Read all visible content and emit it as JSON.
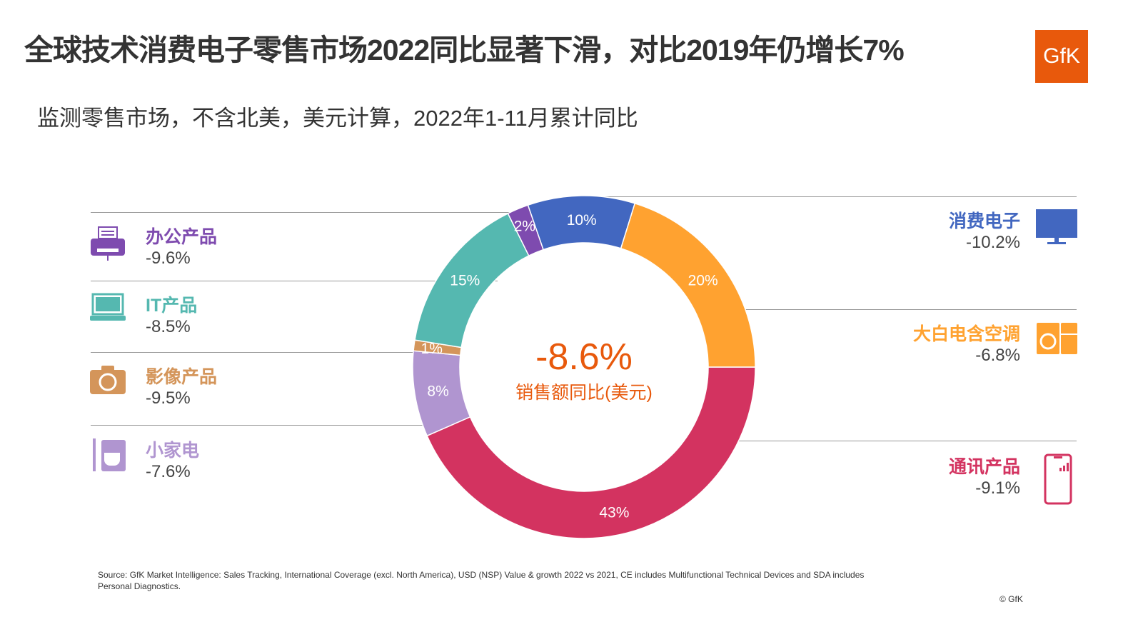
{
  "title": "全球技术消费电子零售市场2022同比显著下滑，对比2019年仍增长7%",
  "subtitle": "监测零售市场，不含北美，美元计算，2022年1-11月累计同比",
  "logo": "GfK",
  "center": {
    "value": "-8.6%",
    "label": "销售额同比(美元)"
  },
  "categories_left": [
    {
      "name": "办公产品",
      "growth": "-9.6%",
      "color": "#7E4BAF",
      "icon": "printer-icon"
    },
    {
      "name": "IT产品",
      "growth": "-8.5%",
      "color": "#55B8B0",
      "icon": "laptop-icon"
    },
    {
      "name": "影像产品",
      "growth": "-9.5%",
      "color": "#D4955A",
      "icon": "camera-icon"
    },
    {
      "name": "小家电",
      "growth": "-7.6%",
      "color": "#B095D0",
      "icon": "mixer-icon"
    }
  ],
  "categories_right": [
    {
      "name": "消费电子",
      "growth": "-10.2%",
      "color": "#4267C0",
      "icon": "tv-icon"
    },
    {
      "name": "大白电含空调",
      "growth": "-6.8%",
      "color": "#FFA230",
      "icon": "washer-fridge-icon"
    },
    {
      "name": "通讯产品",
      "growth": "-9.1%",
      "color": "#D33360",
      "icon": "smartphone-icon"
    }
  ],
  "chart_data": {
    "type": "pie",
    "variant": "donut",
    "categories": [
      "通讯产品",
      "小家电",
      "影像产品",
      "IT产品",
      "办公产品",
      "消费电子",
      "大白电含空调"
    ],
    "values": [
      43,
      8,
      1,
      15,
      2,
      10,
      20
    ],
    "labels": [
      "43%",
      "8%",
      "1%",
      "15%",
      "2%",
      "10%",
      "20%"
    ],
    "colors": [
      "#D33360",
      "#B095D0",
      "#D4955A",
      "#55B8B0",
      "#7E4BAF",
      "#4267C0",
      "#FFA230"
    ],
    "unit": "%"
  },
  "source": "Source: GfK Market Intelligence: Sales Tracking, International Coverage (excl. North America), USD (NSP) Value & growth 2022 vs 2021, CE includes Multifunctional Technical Devices and SDA includes Personal Diagnostics.",
  "copyright": "© GfK"
}
